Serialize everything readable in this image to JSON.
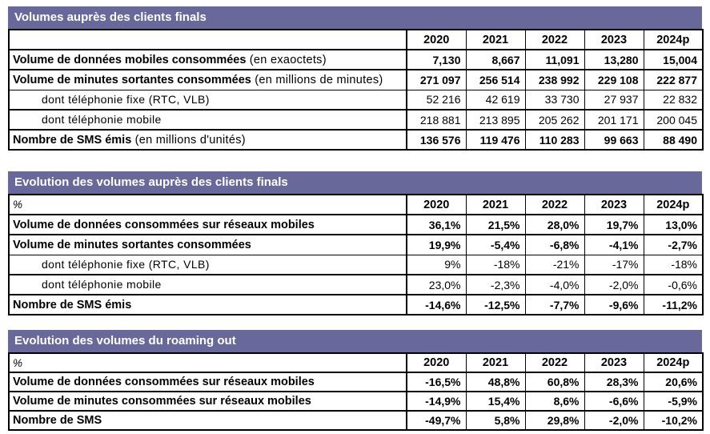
{
  "colors": {
    "band_background": "#68689b",
    "band_text": "#ffffff",
    "border": "#000000",
    "page_background": "#ffffff"
  },
  "years": [
    "2020",
    "2021",
    "2022",
    "2023",
    "2024p"
  ],
  "tables": [
    {
      "title": "Volumes auprès des clients finals",
      "unit_label": "",
      "rows": [
        {
          "label": "Volume de données mobiles consommées",
          "label_suffix": " (en exaoctets)",
          "bold": true,
          "indent": false,
          "values": [
            "7,130",
            "8,667",
            "11,091",
            "13,280",
            "15,004"
          ]
        },
        {
          "label": "Volume de minutes sortantes consommées",
          "label_suffix": " (en millions de minutes)",
          "bold": true,
          "indent": false,
          "values": [
            "271 097",
            "256 514",
            "238 992",
            "229 108",
            "222 877"
          ]
        },
        {
          "label": "dont téléphonie fixe (RTC, VLB)",
          "label_suffix": "",
          "bold": false,
          "indent": true,
          "values": [
            "52 216",
            "42 619",
            "33 730",
            "27 937",
            "22 832"
          ]
        },
        {
          "label": "dont téléphonie mobile",
          "label_suffix": "",
          "bold": false,
          "indent": true,
          "values": [
            "218 881",
            "213 895",
            "205 262",
            "201 171",
            "200 045"
          ]
        },
        {
          "label": "Nombre de SMS émis",
          "label_suffix": " (en millions d'unités)",
          "bold": true,
          "indent": false,
          "values": [
            "136 576",
            "119 476",
            "110 283",
            "99 663",
            "88 490"
          ]
        }
      ]
    },
    {
      "title": "Evolution des volumes auprès des clients finals",
      "unit_label": "%",
      "rows": [
        {
          "label": "Volume de données consommées sur réseaux mobiles",
          "label_suffix": "",
          "bold": true,
          "indent": false,
          "values": [
            "36,1%",
            "21,5%",
            "28,0%",
            "19,7%",
            "13,0%"
          ]
        },
        {
          "label": "Volume de minutes sortantes consommées",
          "label_suffix": "",
          "bold": true,
          "indent": false,
          "values": [
            "19,9%",
            "-5,4%",
            "-6,8%",
            "-4,1%",
            "-2,7%"
          ]
        },
        {
          "label": "dont téléphonie fixe (RTC, VLB)",
          "label_suffix": "",
          "bold": false,
          "indent": true,
          "values": [
            "9%",
            "-18%",
            "-21%",
            "-17%",
            "-18%"
          ]
        },
        {
          "label": "dont téléphonie mobile",
          "label_suffix": "",
          "bold": false,
          "indent": true,
          "values": [
            "23,0%",
            "-2,3%",
            "-4,0%",
            "-2,0%",
            "-0,6%"
          ]
        },
        {
          "label": "Nombre de SMS émis",
          "label_suffix": "",
          "bold": true,
          "indent": false,
          "values": [
            "-14,6%",
            "-12,5%",
            "-7,7%",
            "-9,6%",
            "-11,2%"
          ]
        }
      ]
    },
    {
      "title": "Evolution des volumes du roaming out",
      "unit_label": "%",
      "rows": [
        {
          "label": "Volume de données consommées sur réseaux mobiles",
          "label_suffix": "",
          "bold": true,
          "indent": false,
          "values": [
            "-16,5%",
            "48,8%",
            "60,8%",
            "28,3%",
            "20,6%"
          ]
        },
        {
          "label": "Volume de minutes consommées sur réseaux mobiles",
          "label_suffix": "",
          "bold": true,
          "indent": false,
          "values": [
            "-14,9%",
            "15,4%",
            "8,6%",
            "-6,6%",
            "-5,9%"
          ]
        },
        {
          "label": "Nombre de SMS",
          "label_suffix": "",
          "bold": true,
          "indent": false,
          "values": [
            "-49,7%",
            "5,8%",
            "29,8%",
            "-2,0%",
            "-10,2%"
          ]
        }
      ]
    }
  ]
}
